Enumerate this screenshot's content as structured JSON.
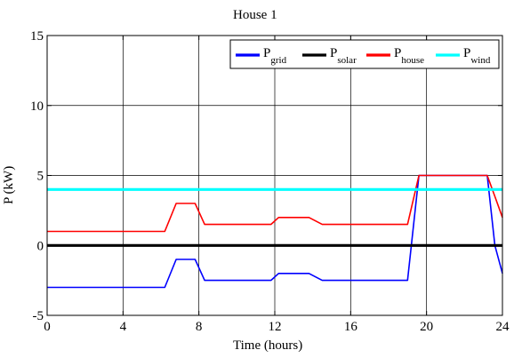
{
  "chart_data": {
    "type": "line",
    "title": "House 1",
    "xlabel": "Time (hours)",
    "ylabel": "P (kW)",
    "xlim": [
      0,
      24
    ],
    "ylim": [
      -5,
      15
    ],
    "xticks": [
      0,
      4,
      8,
      12,
      16,
      20,
      24
    ],
    "yticks": [
      -5,
      0,
      5,
      10,
      15
    ],
    "grid": true,
    "legend_position": "top-right",
    "series": [
      {
        "name": "P",
        "subscript": "grid",
        "color": "#0000ff",
        "x": [
          0,
          6.2,
          6.8,
          7.8,
          8.3,
          11.8,
          12.2,
          13.8,
          14.5,
          19.0,
          19.6,
          23.2,
          23.6,
          24
        ],
        "y": [
          -3,
          -3,
          -1,
          -1,
          -2.5,
          -2.5,
          -2,
          -2,
          -2.5,
          -2.5,
          5,
          5,
          0,
          -2
        ]
      },
      {
        "name": "P",
        "subscript": "solar",
        "color": "#000000",
        "x": [
          0,
          24
        ],
        "y": [
          0,
          0
        ]
      },
      {
        "name": "P",
        "subscript": "house",
        "color": "#ff0000",
        "x": [
          0,
          6.2,
          6.8,
          7.8,
          8.3,
          11.8,
          12.2,
          13.8,
          14.5,
          19.0,
          19.6,
          23.2,
          23.6,
          24
        ],
        "y": [
          1,
          1,
          3,
          3,
          1.5,
          1.5,
          2,
          2,
          1.5,
          1.5,
          5,
          5,
          3.5,
          2
        ]
      },
      {
        "name": "P",
        "subscript": "wind",
        "color": "#00ffff",
        "x": [
          0,
          24
        ],
        "y": [
          4,
          4
        ]
      }
    ]
  }
}
